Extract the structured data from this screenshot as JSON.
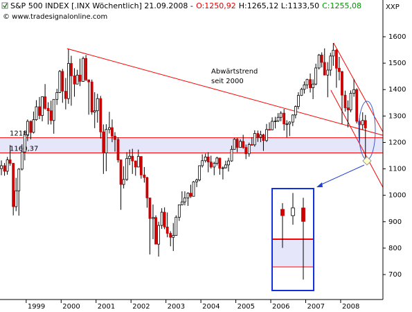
{
  "chart_data": {
    "type": "candlestick",
    "title": "S&P 500 INDEX [.INX  Wöchentlich] 21.09.2008 -",
    "quote": [
      {
        "text": "O:1250,92",
        "color": "#e00000"
      },
      {
        "text": "H:1265,12 L:1133,50",
        "color": "#000000"
      },
      {
        "text": "C:1255,08",
        "color": "#009000"
      }
    ],
    "source": "© www.tradesignalonline.com",
    "y_axis_label": "XXP",
    "annotation": [
      "Abwärtstrend",
      "seit 2000"
    ],
    "up_color": "#ffffff",
    "down_color": "#cc0000",
    "wick_color": "#000000",
    "x": [
      1998.29,
      1998.38,
      1998.46,
      1998.54,
      1998.63,
      1998.71,
      1998.79,
      1998.88,
      1998.96,
      1999.04,
      1999.13,
      1999.21,
      1999.29,
      1999.38,
      1999.46,
      1999.54,
      1999.63,
      1999.71,
      1999.79,
      1999.88,
      1999.96,
      2000.04,
      2000.13,
      2000.21,
      2000.29,
      2000.38,
      2000.46,
      2000.54,
      2000.63,
      2000.71,
      2000.79,
      2000.88,
      2000.96,
      2001.04,
      2001.13,
      2001.21,
      2001.29,
      2001.38,
      2001.46,
      2001.54,
      2001.63,
      2001.71,
      2001.79,
      2001.88,
      2001.96,
      2002.04,
      2002.13,
      2002.21,
      2002.29,
      2002.38,
      2002.46,
      2002.54,
      2002.63,
      2002.71,
      2002.79,
      2002.88,
      2002.96,
      2003.04,
      2003.13,
      2003.21,
      2003.29,
      2003.38,
      2003.46,
      2003.54,
      2003.63,
      2003.71,
      2003.79,
      2003.88,
      2003.96,
      2004.04,
      2004.13,
      2004.21,
      2004.29,
      2004.38,
      2004.46,
      2004.54,
      2004.63,
      2004.71,
      2004.79,
      2004.88,
      2004.96,
      2005.04,
      2005.13,
      2005.21,
      2005.29,
      2005.38,
      2005.46,
      2005.54,
      2005.63,
      2005.71,
      2005.79,
      2005.88,
      2005.96,
      2006.04,
      2006.13,
      2006.21,
      2006.29,
      2006.38,
      2006.46,
      2006.54,
      2006.63,
      2006.71,
      2006.79,
      2006.88,
      2006.96,
      2007.04,
      2007.13,
      2007.21,
      2007.29,
      2007.38,
      2007.46,
      2007.54,
      2007.63,
      2007.71,
      2007.79,
      2007.88,
      2007.96,
      2008.04,
      2008.13,
      2008.21,
      2008.29,
      2008.38,
      2008.46,
      2008.54,
      2008.63,
      2008.71
    ],
    "open": [
      1101,
      1112,
      1091,
      1134,
      1121,
      957,
      1017,
      1099,
      1164,
      1229,
      1280,
      1238,
      1286,
      1335,
      1302,
      1373,
      1329,
      1320,
      1283,
      1363,
      1389,
      1469,
      1394,
      1366,
      1499,
      1452,
      1421,
      1455,
      1431,
      1518,
      1437,
      1429,
      1315,
      1320,
      1366,
      1240,
      1160,
      1249,
      1256,
      1224,
      1211,
      1134,
      1041,
      1060,
      1139,
      1148,
      1130,
      1107,
      1147,
      1077,
      1067,
      990,
      912,
      916,
      815,
      886,
      936,
      880,
      856,
      841,
      848,
      917,
      964,
      975,
      990,
      1008,
      996,
      1051,
      1058,
      1112,
      1131,
      1145,
      1126,
      1107,
      1121,
      1141,
      1102,
      1104,
      1115,
      1130,
      1174,
      1212,
      1181,
      1204,
      1181,
      1157,
      1192,
      1191,
      1234,
      1220,
      1229,
      1207,
      1249,
      1248,
      1280,
      1281,
      1295,
      1311,
      1270,
      1270,
      1277,
      1304,
      1336,
      1378,
      1401,
      1418,
      1438,
      1407,
      1421,
      1482,
      1531,
      1503,
      1455,
      1474,
      1527,
      1549,
      1481,
      1468,
      1379,
      1331,
      1323,
      1386,
      1400,
      1280,
      1267,
      1283
    ],
    "high": [
      1132,
      1122,
      1145,
      1190,
      1122,
      1066,
      1103,
      1193,
      1245,
      1287,
      1283,
      1317,
      1360,
      1372,
      1373,
      1421,
      1352,
      1358,
      1364,
      1403,
      1474,
      1478,
      1444,
      1553,
      1528,
      1481,
      1475,
      1517,
      1525,
      1531,
      1437,
      1438,
      1390,
      1384,
      1376,
      1268,
      1269,
      1316,
      1287,
      1239,
      1219,
      1135,
      1110,
      1163,
      1173,
      1176,
      1131,
      1173,
      1147,
      1107,
      1070,
      990,
      965,
      924,
      900,
      951,
      954,
      935,
      864,
      895,
      924,
      965,
      1015,
      1015,
      1011,
      1040,
      1054,
      1063,
      1112,
      1155,
      1158,
      1163,
      1150,
      1127,
      1146,
      1141,
      1109,
      1131,
      1142,
      1188,
      1217,
      1217,
      1212,
      1229,
      1192,
      1199,
      1220,
      1246,
      1245,
      1244,
      1233,
      1270,
      1276,
      1295,
      1297,
      1311,
      1318,
      1327,
      1284,
      1280,
      1306,
      1340,
      1390,
      1407,
      1431,
      1441,
      1461,
      1439,
      1498,
      1535,
      1541,
      1556,
      1504,
      1539,
      1576,
      1553,
      1524,
      1471,
      1396,
      1359,
      1397,
      1440,
      1405,
      1293,
      1314,
      1304
    ],
    "low": [
      1076,
      1074,
      1078,
      1112,
      924,
      940,
      923,
      1094,
      1132,
      1205,
      1212,
      1234,
      1282,
      1288,
      1280,
      1324,
      1268,
      1268,
      1233,
      1342,
      1387,
      1350,
      1325,
      1346,
      1339,
      1373,
      1420,
      1413,
      1430,
      1432,
      1305,
      1305,
      1254,
      1275,
      1215,
      1081,
      1091,
      1234,
      1201,
      1165,
      1124,
      945,
      1026,
      1054,
      1114,
      1081,
      1074,
      1106,
      1063,
      1048,
      953,
      776,
      834,
      815,
      768,
      873,
      872,
      841,
      807,
      789,
      847,
      903,
      962,
      962,
      960,
      990,
      996,
      1031,
      1053,
      1105,
      1124,
      1087,
      1101,
      1076,
      1113,
      1078,
      1060,
      1101,
      1090,
      1127,
      1173,
      1163,
      1180,
      1176,
      1137,
      1146,
      1188,
      1184,
      1202,
      1201,
      1168,
      1202,
      1246,
      1246,
      1253,
      1277,
      1280,
      1245,
      1219,
      1224,
      1262,
      1291,
      1326,
      1376,
      1385,
      1403,
      1389,
      1364,
      1416,
      1476,
      1484,
      1454,
      1371,
      1452,
      1490,
      1407,
      1435,
      1270,
      1317,
      1257,
      1314,
      1373,
      1272,
      1200,
      1248,
      1134
    ],
    "close": [
      1112,
      1091,
      1134,
      1121,
      957,
      1017,
      1099,
      1164,
      1229,
      1280,
      1238,
      1286,
      1335,
      1302,
      1373,
      1329,
      1320,
      1283,
      1363,
      1389,
      1469,
      1394,
      1366,
      1499,
      1452,
      1421,
      1455,
      1431,
      1518,
      1437,
      1429,
      1315,
      1320,
      1366,
      1240,
      1160,
      1249,
      1256,
      1224,
      1211,
      1134,
      1041,
      1060,
      1139,
      1148,
      1130,
      1107,
      1147,
      1077,
      1067,
      990,
      912,
      916,
      815,
      886,
      936,
      880,
      856,
      841,
      848,
      917,
      964,
      975,
      990,
      1008,
      996,
      1051,
      1058,
      1112,
      1131,
      1145,
      1126,
      1107,
      1121,
      1141,
      1102,
      1104,
      1115,
      1130,
      1174,
      1212,
      1181,
      1204,
      1181,
      1157,
      1192,
      1191,
      1234,
      1220,
      1229,
      1207,
      1249,
      1248,
      1280,
      1281,
      1295,
      1311,
      1270,
      1270,
      1277,
      1304,
      1336,
      1378,
      1401,
      1418,
      1438,
      1407,
      1421,
      1482,
      1531,
      1503,
      1455,
      1474,
      1527,
      1549,
      1481,
      1468,
      1379,
      1331,
      1323,
      1386,
      1400,
      1280,
      1267,
      1283,
      1255
    ],
    "xlim": [
      1998.25,
      2009.21
    ],
    "xticks": [
      1999,
      2000,
      2001,
      2002,
      2003,
      2004,
      2005,
      2006,
      2007,
      2008
    ],
    "ylim": [
      605.5,
      1686.6
    ],
    "yticks": [
      700,
      800,
      900,
      1000,
      1100,
      1200,
      1300,
      1400,
      1500,
      1600
    ],
    "levels": [
      {
        "value": 1218,
        "label": "1218,"
      },
      {
        "value": 1160.37,
        "label": "1160,37"
      }
    ],
    "level_color": "#ff0000",
    "band_color": "#e6e6fa",
    "trendlines": [
      {
        "x": [
          2000.17,
          2009.21
        ],
        "y": [
          1555,
          1227
        ]
      },
      {
        "x": [
          2007.8,
          2009.21
        ],
        "y": [
          1576,
          1240
        ]
      },
      {
        "x": [
          2007.72,
          2009.21
        ],
        "y": [
          1398,
          1030
        ]
      }
    ],
    "trend_color": "#ff0000"
  }
}
